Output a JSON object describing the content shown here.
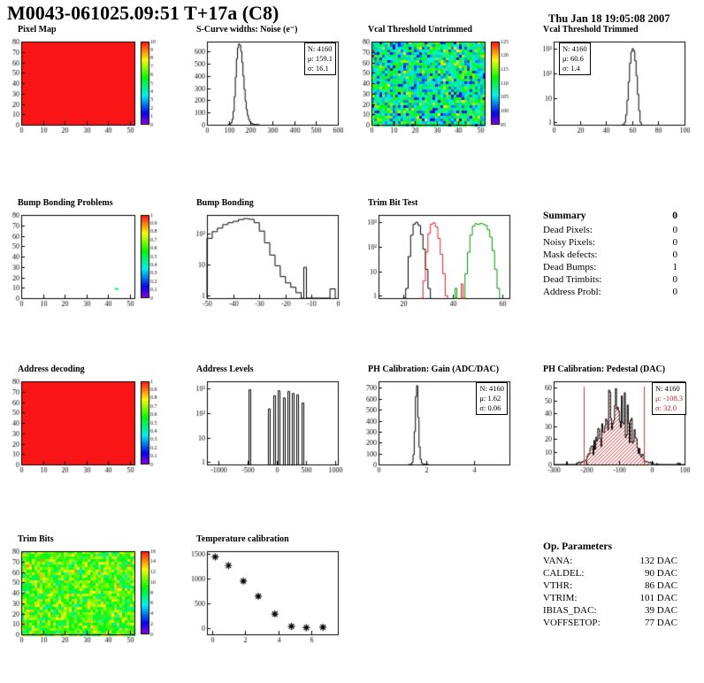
{
  "header": {
    "title": "M0043-061025.09:51 T+17a (C8)",
    "date": "Thu Jan 18 19:05:08 2007"
  },
  "colors": {
    "frame": "#000000",
    "stats_red": "#cc2222",
    "accent_red": "#dd3333",
    "accent_green": "#009900"
  },
  "summary": {
    "title": "Summary",
    "total": "0",
    "rows": [
      [
        "Dead Pixels:",
        "0"
      ],
      [
        "Noisy Pixels:",
        "0"
      ],
      [
        "Mask defects:",
        "0"
      ],
      [
        "Dead Bumps:",
        "1"
      ],
      [
        "Dead Trimbits:",
        "0"
      ],
      [
        "Address Probl:",
        "0"
      ]
    ]
  },
  "op_parameters": {
    "title": "Op. Parameters",
    "rows": [
      [
        "VANA:",
        "132 DAC"
      ],
      [
        "CALDEL:",
        "90 DAC"
      ],
      [
        "VTHR:",
        "86 DAC"
      ],
      [
        "VTRIM:",
        "101 DAC"
      ],
      [
        "IBIAS_DAC:",
        "39 DAC"
      ],
      [
        "VOFFSETOP:",
        "77 DAC"
      ]
    ]
  },
  "chart_data": [
    {
      "id": "pixel-map",
      "title": "Pixel Map",
      "type": "heatmap",
      "render": "heatmap",
      "x_range": [
        0,
        52
      ],
      "y_range": [
        0,
        80
      ],
      "x_ticks": [
        0,
        10,
        20,
        30,
        40,
        50
      ],
      "y_ticks": [
        0,
        10,
        20,
        30,
        40,
        50,
        60,
        70,
        80
      ],
      "z_range": [
        0,
        10
      ],
      "fill": "uniform",
      "palette": "rainbow",
      "colorbar_labels": [
        0,
        1,
        2,
        3,
        4,
        5,
        6,
        7,
        8,
        9,
        10
      ]
    },
    {
      "id": "scurve-noise",
      "title": "S-Curve widths: Noise (e⁻)",
      "type": "bar",
      "render": "hist",
      "x_range": [
        0,
        600
      ],
      "x_ticks": [
        0,
        100,
        200,
        300,
        400,
        500,
        600
      ],
      "y_range": [
        0,
        680
      ],
      "y_ticks": [
        0,
        100,
        200,
        300,
        400,
        500,
        600
      ],
      "stats_lines": [
        "N: 4160",
        "μ: 159.1",
        "σ: 16.1"
      ],
      "bins": [
        [
          95,
          0
        ],
        [
          100,
          2
        ],
        [
          105,
          6
        ],
        [
          110,
          18
        ],
        [
          115,
          45
        ],
        [
          120,
          110
        ],
        [
          125,
          230
        ],
        [
          130,
          390
        ],
        [
          135,
          540
        ],
        [
          140,
          630
        ],
        [
          145,
          660
        ],
        [
          150,
          650
        ],
        [
          155,
          600
        ],
        [
          160,
          510
        ],
        [
          165,
          400
        ],
        [
          170,
          290
        ],
        [
          175,
          195
        ],
        [
          180,
          125
        ],
        [
          185,
          78
        ],
        [
          190,
          46
        ],
        [
          195,
          27
        ],
        [
          200,
          15
        ],
        [
          205,
          9
        ],
        [
          210,
          5
        ],
        [
          215,
          3
        ],
        [
          220,
          2
        ],
        [
          230,
          1
        ],
        [
          240,
          0
        ]
      ]
    },
    {
      "id": "vcal-untrimmed",
      "title": "Vcal Threshold Untrimmed",
      "type": "heatmap",
      "render": "heatmap",
      "x_range": [
        0,
        52
      ],
      "y_range": [
        0,
        80
      ],
      "x_ticks": [
        0,
        10,
        20,
        30,
        40,
        50
      ],
      "y_ticks": [
        0,
        10,
        20,
        30,
        40,
        50,
        60,
        70,
        80
      ],
      "z_range": [
        95,
        125
      ],
      "fill": "noise",
      "noise_mean": 108,
      "noise_sigma": 4.5,
      "palette": "rainbow",
      "colorbar_labels": [
        95,
        100,
        105,
        110,
        115,
        120,
        125
      ]
    },
    {
      "id": "vcal-trimmed",
      "title": "Vcal Threshold Trimmed",
      "type": "bar",
      "render": "hist",
      "logy": true,
      "y_max": 2000,
      "x_range": [
        0,
        100
      ],
      "x_ticks": [
        0,
        20,
        40,
        60,
        80,
        100
      ],
      "y_ticks_log": [
        1,
        10,
        100,
        1000
      ],
      "stats_lines": [
        "N: 4160",
        "μ: 60.6",
        "σ: 1.4"
      ],
      "bins": [
        [
          52,
          0
        ],
        [
          54,
          1
        ],
        [
          55,
          2
        ],
        [
          56,
          8
        ],
        [
          57,
          45
        ],
        [
          58,
          260
        ],
        [
          59,
          750
        ],
        [
          60,
          1020
        ],
        [
          61,
          820
        ],
        [
          62,
          330
        ],
        [
          63,
          80
        ],
        [
          64,
          14
        ],
        [
          65,
          3
        ],
        [
          66,
          1
        ],
        [
          67,
          0
        ]
      ]
    },
    {
      "id": "bump-problems",
      "title": "Bump Bonding Problems",
      "type": "heatmap",
      "render": "heatmap",
      "x_range": [
        0,
        52
      ],
      "y_range": [
        0,
        80
      ],
      "x_ticks": [
        0,
        10,
        20,
        30,
        40,
        50
      ],
      "y_ticks": [
        0,
        10,
        20,
        30,
        40,
        50,
        60,
        70,
        80
      ],
      "z_range": [
        0,
        1
      ],
      "fill": "empty",
      "defects": [
        [
          43,
          8
        ]
      ],
      "palette": "rainbow",
      "colorbar_labels": [
        0,
        0.1,
        0.2,
        0.3,
        0.4,
        0.5,
        0.6,
        0.7,
        0.8,
        0.9,
        1
      ]
    },
    {
      "id": "bump-bonding",
      "title": "Bump Bonding",
      "type": "bar",
      "render": "hist",
      "logy": true,
      "y_max": 400,
      "x_range": [
        -50,
        0
      ],
      "x_ticks": [
        -50,
        -40,
        -30,
        -20,
        -10,
        0
      ],
      "y_ticks_log": [
        1,
        10,
        100
      ],
      "bins": [
        [
          -50,
          70
        ],
        [
          -48,
          115
        ],
        [
          -46,
          150
        ],
        [
          -44,
          195
        ],
        [
          -42,
          225
        ],
        [
          -40,
          250
        ],
        [
          -38,
          285
        ],
        [
          -36,
          305
        ],
        [
          -34,
          290
        ],
        [
          -32,
          225
        ],
        [
          -30,
          120
        ],
        [
          -28,
          50
        ],
        [
          -26,
          20
        ],
        [
          -24,
          9
        ],
        [
          -22,
          4
        ],
        [
          -20,
          2.5
        ],
        [
          -18,
          1.8
        ],
        [
          -16,
          1.2
        ],
        [
          -14,
          0
        ],
        [
          -13,
          8
        ],
        [
          -12,
          0
        ],
        [
          -3,
          1.6
        ],
        [
          -1,
          0
        ]
      ]
    },
    {
      "id": "trim-bit-test",
      "title": "Trim Bit Test",
      "type": "line",
      "render": "multi_hist",
      "logy": true,
      "y_max": 2000,
      "x_range": [
        10,
        63
      ],
      "x_ticks": [
        20,
        40,
        60
      ],
      "y_ticks_log": [
        1,
        10,
        100,
        1000
      ],
      "series": [
        {
          "name": "trim-black",
          "color": "#000000",
          "bins": [
            [
              20,
              0
            ],
            [
              21,
              2
            ],
            [
              22,
              40
            ],
            [
              23,
              300
            ],
            [
              24,
              850
            ],
            [
              25,
              1000
            ],
            [
              26,
              750
            ],
            [
              27,
              320
            ],
            [
              28,
              80
            ],
            [
              29,
              12
            ],
            [
              30,
              2
            ],
            [
              31,
              0
            ]
          ]
        },
        {
          "name": "trim-red",
          "color": "#dd2222",
          "bins": [
            [
              27,
              0
            ],
            [
              28,
              4
            ],
            [
              29,
              60
            ],
            [
              30,
              350
            ],
            [
              31,
              850
            ],
            [
              32,
              950
            ],
            [
              33,
              650
            ],
            [
              34,
              220
            ],
            [
              35,
              50
            ],
            [
              36,
              8
            ],
            [
              37,
              1
            ],
            [
              38,
              0
            ]
          ]
        },
        {
          "name": "trim-green",
          "color": "#009900",
          "bins": [
            [
              44,
              0
            ],
            [
              45,
              8
            ],
            [
              46,
              60
            ],
            [
              47,
              300
            ],
            [
              48,
              700
            ],
            [
              49,
              880
            ],
            [
              50,
              820
            ],
            [
              51,
              900
            ],
            [
              52,
              850
            ],
            [
              53,
              750
            ],
            [
              54,
              500
            ],
            [
              55,
              250
            ],
            [
              56,
              70
            ],
            [
              57,
              12
            ],
            [
              58,
              2
            ],
            [
              59,
              0
            ]
          ]
        }
      ],
      "extras": [
        {
          "color": "#009900",
          "x": 41,
          "h": 2
        },
        {
          "color": "#dd2222",
          "x": 43.5,
          "h": 3
        }
      ]
    },
    {
      "id": "address-decoding",
      "title": "Address decoding",
      "type": "heatmap",
      "render": "heatmap",
      "x_range": [
        0,
        52
      ],
      "y_range": [
        0,
        80
      ],
      "x_ticks": [
        0,
        10,
        20,
        30,
        40,
        50
      ],
      "y_ticks": [
        0,
        10,
        20,
        30,
        40,
        50,
        60,
        70,
        80
      ],
      "z_range": [
        0,
        1
      ],
      "fill": "uniform",
      "palette": "rainbow",
      "colorbar_labels": [
        0,
        0.1,
        0.2,
        0.3,
        0.4,
        0.5,
        0.6,
        0.7,
        0.8,
        0.9,
        1
      ]
    },
    {
      "id": "address-levels",
      "title": "Address Levels",
      "type": "bar",
      "render": "spikes",
      "logy": true,
      "y_max": 2000,
      "x_range": [
        -1200,
        1050
      ],
      "x_ticks": [
        -1000,
        -500,
        0,
        500,
        1000
      ],
      "y_ticks_log": [
        1,
        10,
        100,
        1000
      ],
      "spikes": [
        [
          -480,
          900
        ],
        [
          -150,
          150
        ],
        [
          -60,
          520
        ],
        [
          20,
          820
        ],
        [
          100,
          420
        ],
        [
          180,
          760
        ],
        [
          260,
          640
        ],
        [
          340,
          560
        ],
        [
          420,
          260
        ]
      ]
    },
    {
      "id": "ph-gain",
      "title": "PH Calibration: Gain (ADC/DAC)",
      "type": "bar",
      "render": "hist",
      "x_range": [
        0,
        5.5
      ],
      "x_ticks": [
        0,
        2,
        4
      ],
      "y_range": [
        0,
        760
      ],
      "y_ticks": [
        0,
        100,
        200,
        300,
        400,
        500,
        600,
        700
      ],
      "stats_lines": [
        "N: 4160",
        "μ: 1.62",
        "σ: 0.06"
      ],
      "bins": [
        [
          1.25,
          0
        ],
        [
          1.3,
          1
        ],
        [
          1.35,
          4
        ],
        [
          1.4,
          20
        ],
        [
          1.45,
          90
        ],
        [
          1.5,
          300
        ],
        [
          1.55,
          620
        ],
        [
          1.6,
          720
        ],
        [
          1.65,
          430
        ],
        [
          1.7,
          160
        ],
        [
          1.75,
          50
        ],
        [
          1.8,
          14
        ],
        [
          1.85,
          5
        ],
        [
          1.9,
          2
        ],
        [
          2,
          1
        ],
        [
          2.1,
          0
        ]
      ]
    },
    {
      "id": "ph-pedestal",
      "title": "PH Calibration: Pedestal (DAC)",
      "type": "bar",
      "render": "noisy_hist",
      "x_range": [
        -300,
        100
      ],
      "x_ticks": [
        -300,
        -200,
        -100,
        0,
        100
      ],
      "y_range": [
        0,
        65
      ],
      "y_ticks": [
        0,
        10,
        20,
        30,
        40,
        50,
        60
      ],
      "mu": -110,
      "sigma": 42,
      "amp": 48,
      "bin_width": 3,
      "fill_style": "red-hatch",
      "red_lines": [
        -208,
        -25
      ],
      "stats_lines": [
        "N: 4160",
        "μ: -108.3",
        "σ: 32.0"
      ]
    },
    {
      "id": "trim-bits",
      "title": "Trim Bits",
      "type": "heatmap",
      "render": "heatmap",
      "x_range": [
        0,
        52
      ],
      "y_range": [
        0,
        80
      ],
      "x_ticks": [
        0,
        10,
        20,
        30,
        40,
        50
      ],
      "y_ticks": [
        0,
        10,
        20,
        30,
        40,
        50,
        60,
        70,
        80
      ],
      "z_range": [
        0,
        16
      ],
      "fill": "noise",
      "noise_mean": 10,
      "noise_sigma": 1.6,
      "palette": "rainbow",
      "colorbar_labels": [
        0,
        2,
        4,
        6,
        8,
        10,
        12,
        14,
        16
      ]
    },
    {
      "id": "temperature-calibration",
      "title": "Temperature calibration",
      "type": "scatter",
      "render": "scatter",
      "x_range": [
        -0.3,
        7.6
      ],
      "x_ticks": [
        0,
        2,
        4,
        6
      ],
      "y_range": [
        -120,
        1560
      ],
      "y_ticks": [
        0,
        500,
        1000,
        1500
      ],
      "marker": "asterisk",
      "points": [
        [
          0.2,
          1445
        ],
        [
          1,
          1270
        ],
        [
          1.9,
          955
        ],
        [
          2.8,
          650
        ],
        [
          3.8,
          290
        ],
        [
          4.8,
          40
        ],
        [
          5.7,
          15
        ],
        [
          6.7,
          25
        ]
      ]
    }
  ]
}
